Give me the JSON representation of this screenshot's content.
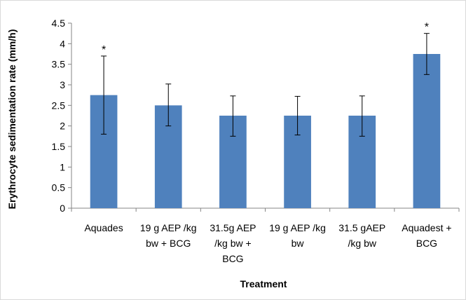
{
  "chart_data": {
    "type": "bar",
    "title": "",
    "xlabel": "Treatment",
    "ylabel": "Erythrocyte sedimentation rate (mm/h)",
    "ylim": [
      0,
      4.5
    ],
    "yticks": [
      "0",
      "0.5",
      "1",
      "1.5",
      "2",
      "2.5",
      "3",
      "3.5",
      "4",
      "4.5"
    ],
    "categories": [
      [
        "Aquades"
      ],
      [
        "19 g AEP /kg",
        "bw + BCG"
      ],
      [
        "31.5g AEP",
        "/kg bw +",
        "BCG"
      ],
      [
        "19 g AEP /kg",
        "bw"
      ],
      [
        "31.5 gAEP",
        "/kg bw"
      ],
      [
        "Aquadest +",
        "BCG"
      ]
    ],
    "values": [
      2.75,
      2.5,
      2.25,
      2.25,
      2.25,
      3.75
    ],
    "error_low": [
      1.8,
      2.0,
      1.75,
      1.78,
      1.75,
      3.25
    ],
    "error_high": [
      3.7,
      3.02,
      2.73,
      2.72,
      2.73,
      4.25
    ],
    "markers": [
      "*",
      "",
      "",
      "",
      "",
      "*"
    ],
    "grid": false,
    "bar_color": "#4F81BD"
  }
}
